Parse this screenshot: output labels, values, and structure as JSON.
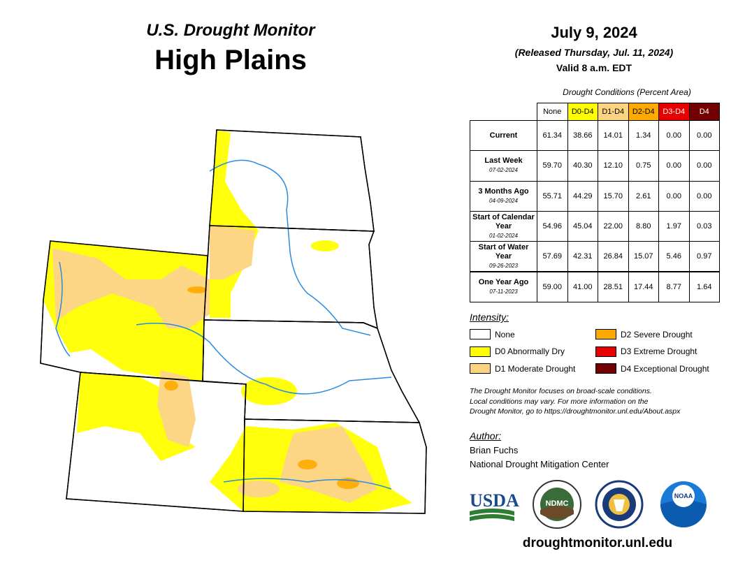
{
  "header": {
    "title": "U.S. Drought Monitor",
    "region": "High Plains",
    "date": "July 9, 2024",
    "released": "(Released Thursday, Jul. 11, 2024)",
    "valid": "Valid 8 a.m. EDT"
  },
  "table": {
    "caption": "Drought Conditions (Percent Area)",
    "columns": [
      {
        "label": "None",
        "color": "#ffffff",
        "text": "#000000"
      },
      {
        "label": "D0-D4",
        "color": "#ffff00",
        "text": "#000000"
      },
      {
        "label": "D1-D4",
        "color": "#fcd37f",
        "text": "#000000"
      },
      {
        "label": "D2-D4",
        "color": "#ffaa00",
        "text": "#000000"
      },
      {
        "label": "D3-D4",
        "color": "#e60000",
        "text": "#ffffff"
      },
      {
        "label": "D4",
        "color": "#730000",
        "text": "#ffffff"
      }
    ],
    "rows": [
      {
        "label": "Current",
        "values": [
          "61.34",
          "38.66",
          "14.01",
          "1.34",
          "0.00",
          "0.00"
        ]
      },
      {
        "label": "Last Week",
        "date": "07-02-2024",
        "values": [
          "59.70",
          "40.30",
          "12.10",
          "0.75",
          "0.00",
          "0.00"
        ]
      },
      {
        "label": "3 Months Ago",
        "date": "04-09-2024",
        "values": [
          "55.71",
          "44.29",
          "15.70",
          "2.61",
          "0.00",
          "0.00"
        ]
      },
      {
        "label": "Start of Calendar Year",
        "date": "01-02-2024",
        "values": [
          "54.96",
          "45.04",
          "22.00",
          "8.80",
          "1.97",
          "0.03"
        ]
      },
      {
        "label": "Start of Water Year",
        "date": "09-26-2023",
        "values": [
          "57.69",
          "42.31",
          "26.84",
          "15.07",
          "5.46",
          "0.97"
        ]
      },
      {
        "label": "One Year Ago",
        "date": "07-11-2023",
        "values": [
          "59.00",
          "41.00",
          "28.51",
          "17.44",
          "8.77",
          "1.64"
        ]
      }
    ]
  },
  "legend": {
    "title": "Intensity:",
    "items": [
      {
        "label": "None",
        "color": "#ffffff"
      },
      {
        "label": "D0 Abnormally Dry",
        "color": "#ffff00"
      },
      {
        "label": "D1 Moderate Drought",
        "color": "#fcd37f"
      },
      {
        "label": "D2 Severe Drought",
        "color": "#ffaa00"
      },
      {
        "label": "D3 Extreme Drought",
        "color": "#e60000"
      },
      {
        "label": "D4 Exceptional Drought",
        "color": "#730000"
      }
    ]
  },
  "note": [
    "The Drought Monitor focuses on broad-scale conditions.",
    "Local conditions may vary. For more information on the",
    "Drought Monitor, go to https://droughtmonitor.unl.edu/About.aspx"
  ],
  "author": {
    "title": "Author:",
    "name": "Brian Fuchs",
    "org": "National Drought Mitigation Center"
  },
  "logos": {
    "usda": "USDA",
    "ndmc": "NDMC",
    "noaa": "NOAA"
  },
  "url": "droughtmonitor.unl.edu"
}
